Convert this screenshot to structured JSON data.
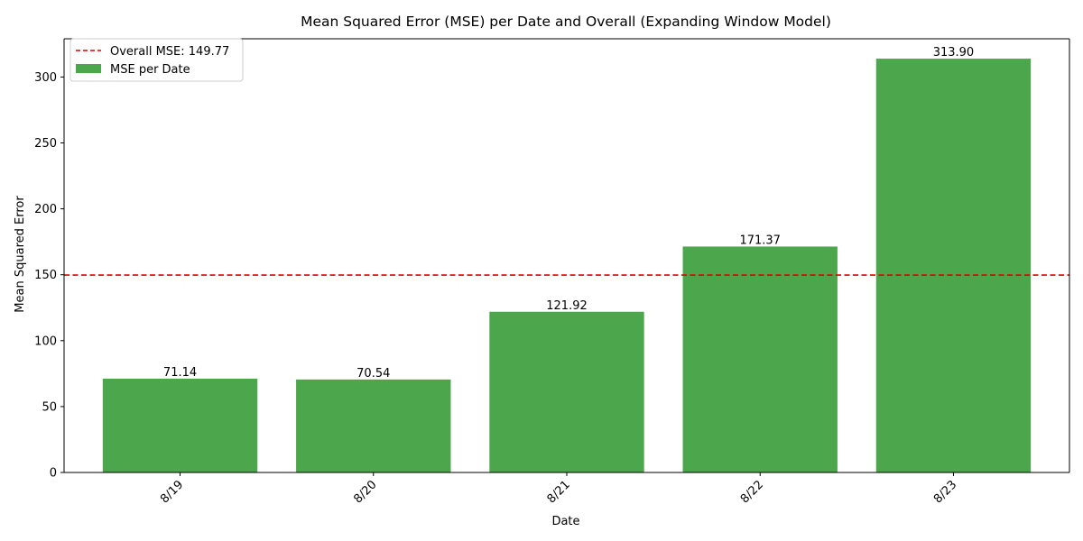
{
  "chart_data": {
    "type": "bar",
    "title": "Mean Squared Error (MSE) per Date and Overall (Expanding Window Model)",
    "xlabel": "Date",
    "ylabel": "Mean Squared Error",
    "categories": [
      "8/19",
      "8/20",
      "8/21",
      "8/22",
      "8/23"
    ],
    "series": [
      {
        "name": "MSE per Date",
        "values": [
          71.14,
          70.54,
          121.92,
          171.37,
          313.9
        ],
        "color": "#4ca64c"
      }
    ],
    "data_labels": [
      "71.14",
      "70.54",
      "121.92",
      "171.37",
      "313.90"
    ],
    "reference_line": {
      "label": "Overall MSE: 149.77",
      "value": 149.77,
      "color": "#e00000",
      "style": "dashed"
    },
    "ylim": [
      0,
      329
    ],
    "yticks": [
      0,
      50,
      100,
      150,
      200,
      250,
      300
    ],
    "xtick_rotation": 45,
    "legend_position": "top-left",
    "grid": false
  }
}
